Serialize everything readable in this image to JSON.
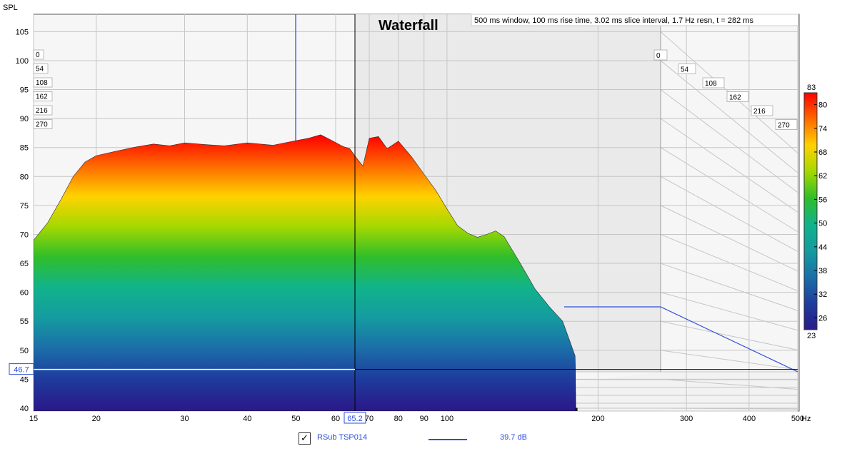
{
  "chart_data": {
    "type": "area",
    "title": "Waterfall",
    "ylabel": "SPL",
    "xunit": "Hz",
    "xscale": "log",
    "xlim": [
      15,
      500
    ],
    "ylim": [
      40,
      108
    ],
    "x_ticks": [
      15,
      20,
      30,
      40,
      50,
      60,
      70,
      80,
      90,
      100,
      200,
      300,
      400,
      500
    ],
    "y_ticks": [
      40,
      45,
      50,
      55,
      60,
      65,
      70,
      75,
      80,
      85,
      90,
      95,
      100,
      105
    ],
    "info_text": "500 ms window, 100 ms rise time, 3.02 ms slice interval, 1.7 Hz resn, t = 282 ms",
    "time_labels": [
      "0",
      "54",
      "108",
      "162",
      "216",
      "270"
    ],
    "cursor": {
      "x": "65.2",
      "y": "46.7",
      "x_value": 65.2,
      "y_value": 46.7
    },
    "colorbar": {
      "max_label": "83",
      "min_label": "23",
      "ticks": [
        "80",
        "74",
        "68",
        "62",
        "56",
        "50",
        "44",
        "38",
        "32",
        "26"
      ],
      "max": 83,
      "min": 23,
      "colors": [
        "#ff0000",
        "#ff6a00",
        "#ffd200",
        "#a4d800",
        "#2fbe2a",
        "#11b38a",
        "#149ca0",
        "#1b6fa8",
        "#1e3d9e",
        "#2a1a8a"
      ]
    },
    "series": [
      {
        "name": "RSub TSP014",
        "value_label": "39.7 dB",
        "color": "#2c4fd8",
        "front_slice": [
          [
            15,
            69
          ],
          [
            16,
            72
          ],
          [
            17,
            76
          ],
          [
            18,
            80
          ],
          [
            19,
            82.5
          ],
          [
            20,
            83.6
          ],
          [
            22,
            84.4
          ],
          [
            24,
            85.1
          ],
          [
            26,
            85.6
          ],
          [
            28,
            85.3
          ],
          [
            30,
            85.8
          ],
          [
            33,
            85.5
          ],
          [
            36,
            85.3
          ],
          [
            40,
            85.8
          ],
          [
            45,
            85.4
          ],
          [
            50,
            86.2
          ],
          [
            53,
            86.6
          ],
          [
            56,
            87.2
          ],
          [
            59,
            86.2
          ],
          [
            62,
            85.2
          ],
          [
            64,
            84.8
          ],
          [
            66,
            83.2
          ],
          [
            68,
            81.8
          ],
          [
            70,
            86.6
          ],
          [
            73,
            86.9
          ],
          [
            76,
            84.8
          ],
          [
            80,
            86.1
          ],
          [
            85,
            83.4
          ],
          [
            90,
            80.4
          ],
          [
            95,
            77.6
          ],
          [
            100,
            74.4
          ],
          [
            105,
            71.5
          ],
          [
            110,
            70.2
          ],
          [
            115,
            69.5
          ],
          [
            120,
            70.0
          ],
          [
            125,
            70.6
          ],
          [
            130,
            69.6
          ],
          [
            140,
            65.0
          ],
          [
            150,
            60.5
          ],
          [
            160,
            57.5
          ],
          [
            170,
            55.0
          ],
          [
            175,
            52.0
          ],
          [
            180,
            49.0
          ]
        ]
      }
    ]
  }
}
